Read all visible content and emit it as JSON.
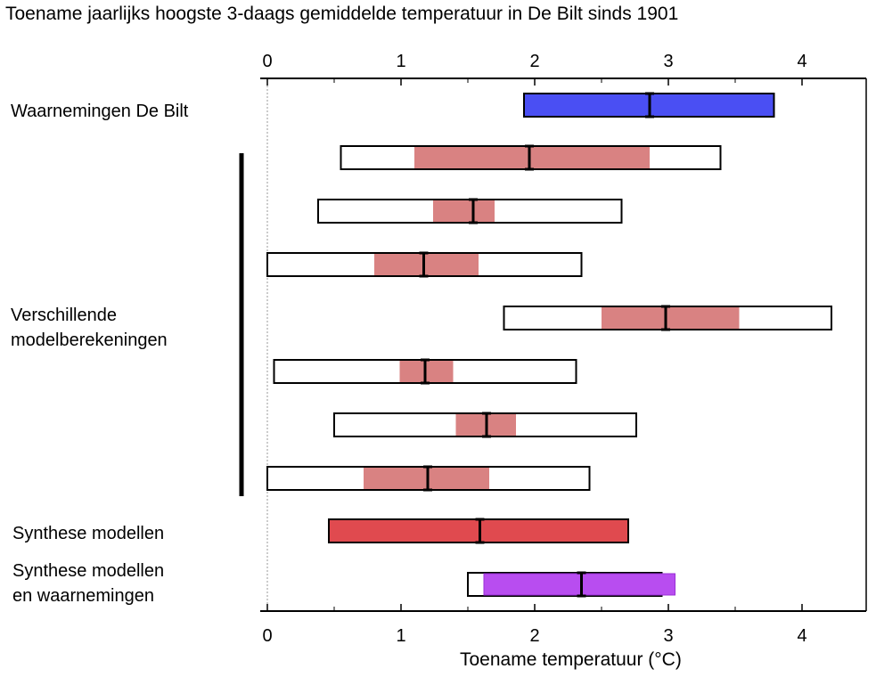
{
  "chart_data": {
    "type": "range-bar",
    "title": "Toename jaarlijks hoogste 3-daags gemiddelde temperatuur in De Bilt sinds 1901",
    "xlabel": "Toename temperatuur (°C)",
    "xlim": [
      -0.05,
      4.5
    ],
    "xticks": [
      "0",
      "1",
      "2",
      "3",
      "4"
    ],
    "group_labels": {
      "observations": "Waarnemingen De Bilt",
      "models_line1": "Verschillende",
      "models_line2": "modelberekeningen",
      "synthesis_models": "Synthese modellen",
      "synthesis_all_line1": "Synthese modellen",
      "synthesis_all_line2": "en waarnemingen"
    },
    "rows": [
      {
        "group": "observations",
        "fill": [
          1.92,
          3.79
        ],
        "best": 2.86,
        "outer": null,
        "color": "#4a4ff3"
      },
      {
        "group": "models",
        "outer": [
          0.55,
          3.39
        ],
        "fill": [
          1.1,
          2.86
        ],
        "best": 1.96,
        "color": "#d98282"
      },
      {
        "group": "models",
        "outer": [
          0.38,
          2.65
        ],
        "fill": [
          1.24,
          1.7
        ],
        "best": 1.54,
        "color": "#d98282"
      },
      {
        "group": "models",
        "outer": [
          0.0,
          2.35
        ],
        "fill": [
          0.8,
          1.58
        ],
        "best": 1.17,
        "color": "#d98282"
      },
      {
        "group": "models",
        "outer": [
          1.77,
          4.22
        ],
        "fill": [
          2.5,
          3.53
        ],
        "best": 2.98,
        "color": "#d98282"
      },
      {
        "group": "models",
        "outer": [
          0.05,
          2.31
        ],
        "fill": [
          0.99,
          1.39
        ],
        "best": 1.18,
        "color": "#d98282"
      },
      {
        "group": "models",
        "outer": [
          0.5,
          2.76
        ],
        "fill": [
          1.41,
          1.86
        ],
        "best": 1.64,
        "color": "#d98282"
      },
      {
        "group": "models",
        "outer": [
          0.0,
          2.41
        ],
        "fill": [
          0.72,
          1.66
        ],
        "best": 1.2,
        "color": "#d98282"
      },
      {
        "group": "synthesis_models",
        "fill": [
          0.46,
          2.7
        ],
        "best": 1.59,
        "outer": null,
        "color": "#e04a4f"
      },
      {
        "group": "synthesis_all",
        "outer": [
          1.5,
          2.95
        ],
        "fill": [
          1.62,
          3.05
        ],
        "best": 2.35,
        "color": "#b84df0"
      }
    ]
  }
}
